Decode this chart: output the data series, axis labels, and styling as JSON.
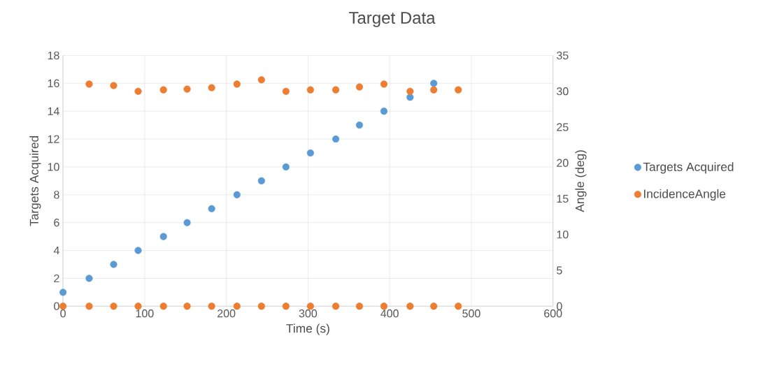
{
  "chart_data": {
    "type": "scatter",
    "title": "Target Data",
    "xlabel": "Time (s)",
    "ylabel": "Targets Acquired",
    "y2label": "Angle (deg)",
    "xlim": [
      0,
      600
    ],
    "xticks": [
      0,
      100,
      200,
      300,
      400,
      500,
      600
    ],
    "ylim": [
      0,
      18
    ],
    "yticks": [
      0,
      2,
      4,
      6,
      8,
      10,
      12,
      14,
      16,
      18
    ],
    "y2lim": [
      0,
      35
    ],
    "y2ticks": [
      0,
      5,
      10,
      15,
      20,
      25,
      30,
      35
    ],
    "grid": true,
    "legend": "right",
    "marker": "circle",
    "series": [
      {
        "name": "Targets Acquired",
        "color": "#5b9bd5",
        "x": [
          0,
          32,
          62,
          92,
          123,
          152,
          182,
          213,
          243,
          273,
          303,
          334,
          363,
          393,
          425,
          454
        ],
        "values": [
          1,
          2,
          3,
          4,
          5,
          6,
          7,
          8,
          9,
          10,
          11,
          12,
          13,
          14,
          15,
          16
        ]
      },
      {
        "name": "IncidenceAngle",
        "color": "#ed7d31",
        "axis": "y2",
        "x": [
          0,
          32,
          32,
          62,
          62,
          92,
          92,
          123,
          123,
          152,
          152,
          182,
          182,
          213,
          213,
          243,
          243,
          273,
          273,
          303,
          303,
          334,
          334,
          363,
          363,
          393,
          393,
          425,
          425,
          454,
          454,
          484,
          484
        ],
        "values": [
          0,
          0,
          31.0,
          0,
          30.8,
          0,
          30.0,
          0,
          30.2,
          0,
          30.3,
          0,
          30.5,
          0,
          31.0,
          0,
          31.6,
          0,
          30.0,
          0,
          30.2,
          0,
          30.2,
          0,
          30.6,
          0,
          31.0,
          0,
          30.0,
          0,
          30.2,
          0,
          30.2
        ]
      }
    ]
  }
}
